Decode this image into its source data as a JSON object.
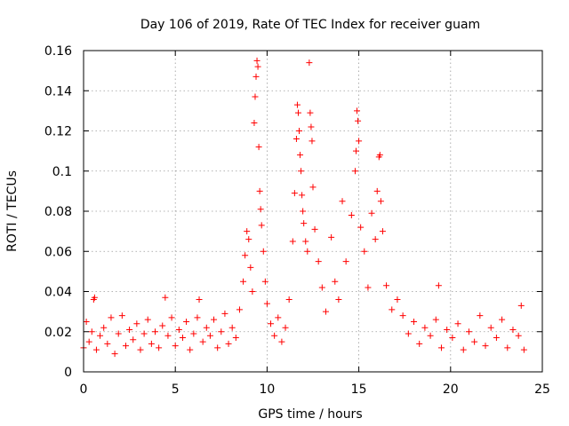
{
  "chart_data": {
    "type": "scatter",
    "title": "Day 106 of 2019, Rate Of TEC Index for receiver guam",
    "xlabel": "GPS time / hours",
    "ylabel": "ROTI / TECUs",
    "xlim": [
      0,
      25
    ],
    "ylim": [
      0,
      0.16
    ],
    "xticks": [
      0,
      5,
      10,
      15,
      20,
      25
    ],
    "xtick_labels": [
      "0",
      "5",
      "10",
      "15",
      "20",
      "25"
    ],
    "yticks": [
      0,
      0.02,
      0.04,
      0.06,
      0.08,
      0.1,
      0.12,
      0.14,
      0.16
    ],
    "ytick_labels": [
      "0",
      "0.02",
      "0.04",
      "0.06",
      "0.08",
      "0.1",
      "0.12",
      "0.14",
      "0.16"
    ],
    "grid": true,
    "marker": "plus",
    "series": [
      {
        "color": "#ff0000",
        "points": [
          [
            0.0,
            0.012
          ],
          [
            0.15,
            0.025
          ],
          [
            0.3,
            0.015
          ],
          [
            0.45,
            0.02
          ],
          [
            0.55,
            0.036
          ],
          [
            0.6,
            0.037
          ],
          [
            0.7,
            0.011
          ],
          [
            0.9,
            0.018
          ],
          [
            1.1,
            0.022
          ],
          [
            1.3,
            0.014
          ],
          [
            1.5,
            0.027
          ],
          [
            1.7,
            0.009
          ],
          [
            1.9,
            0.019
          ],
          [
            2.1,
            0.028
          ],
          [
            2.3,
            0.013
          ],
          [
            2.5,
            0.021
          ],
          [
            2.7,
            0.016
          ],
          [
            2.9,
            0.024
          ],
          [
            3.1,
            0.011
          ],
          [
            3.3,
            0.019
          ],
          [
            3.5,
            0.026
          ],
          [
            3.7,
            0.014
          ],
          [
            3.9,
            0.02
          ],
          [
            4.1,
            0.012
          ],
          [
            4.3,
            0.023
          ],
          [
            4.45,
            0.037
          ],
          [
            4.6,
            0.018
          ],
          [
            4.8,
            0.027
          ],
          [
            5.0,
            0.013
          ],
          [
            5.2,
            0.021
          ],
          [
            5.4,
            0.017
          ],
          [
            5.6,
            0.025
          ],
          [
            5.8,
            0.011
          ],
          [
            6.0,
            0.019
          ],
          [
            6.2,
            0.027
          ],
          [
            6.3,
            0.036
          ],
          [
            6.5,
            0.015
          ],
          [
            6.7,
            0.022
          ],
          [
            6.9,
            0.018
          ],
          [
            7.1,
            0.026
          ],
          [
            7.3,
            0.012
          ],
          [
            7.5,
            0.02
          ],
          [
            7.7,
            0.029
          ],
          [
            7.9,
            0.014
          ],
          [
            8.1,
            0.022
          ],
          [
            8.3,
            0.017
          ],
          [
            8.5,
            0.031
          ],
          [
            8.7,
            0.045
          ],
          [
            8.8,
            0.058
          ],
          [
            8.9,
            0.07
          ],
          [
            9.0,
            0.066
          ],
          [
            9.1,
            0.052
          ],
          [
            9.2,
            0.04
          ],
          [
            9.3,
            0.124
          ],
          [
            9.35,
            0.137
          ],
          [
            9.4,
            0.147
          ],
          [
            9.45,
            0.155
          ],
          [
            9.5,
            0.152
          ],
          [
            9.55,
            0.112
          ],
          [
            9.6,
            0.09
          ],
          [
            9.65,
            0.081
          ],
          [
            9.7,
            0.073
          ],
          [
            9.8,
            0.06
          ],
          [
            9.9,
            0.045
          ],
          [
            10.0,
            0.034
          ],
          [
            10.2,
            0.024
          ],
          [
            10.4,
            0.018
          ],
          [
            10.6,
            0.027
          ],
          [
            10.8,
            0.015
          ],
          [
            11.0,
            0.022
          ],
          [
            11.2,
            0.036
          ],
          [
            11.4,
            0.065
          ],
          [
            11.5,
            0.089
          ],
          [
            11.6,
            0.116
          ],
          [
            11.65,
            0.133
          ],
          [
            11.7,
            0.129
          ],
          [
            11.75,
            0.12
          ],
          [
            11.8,
            0.108
          ],
          [
            11.85,
            0.1
          ],
          [
            11.9,
            0.088
          ],
          [
            11.95,
            0.08
          ],
          [
            12.0,
            0.074
          ],
          [
            12.1,
            0.065
          ],
          [
            12.2,
            0.06
          ],
          [
            12.3,
            0.154
          ],
          [
            12.35,
            0.129
          ],
          [
            12.4,
            0.122
          ],
          [
            12.45,
            0.115
          ],
          [
            12.5,
            0.092
          ],
          [
            12.6,
            0.071
          ],
          [
            12.8,
            0.055
          ],
          [
            13.0,
            0.042
          ],
          [
            13.2,
            0.03
          ],
          [
            13.5,
            0.067
          ],
          [
            13.7,
            0.045
          ],
          [
            13.9,
            0.036
          ],
          [
            14.1,
            0.085
          ],
          [
            14.3,
            0.055
          ],
          [
            14.6,
            0.078
          ],
          [
            14.8,
            0.1
          ],
          [
            14.85,
            0.11
          ],
          [
            14.9,
            0.13
          ],
          [
            14.95,
            0.125
          ],
          [
            15.0,
            0.115
          ],
          [
            15.1,
            0.072
          ],
          [
            15.3,
            0.06
          ],
          [
            15.5,
            0.042
          ],
          [
            15.7,
            0.079
          ],
          [
            15.9,
            0.066
          ],
          [
            16.0,
            0.09
          ],
          [
            16.1,
            0.107
          ],
          [
            16.15,
            0.108
          ],
          [
            16.2,
            0.085
          ],
          [
            16.3,
            0.07
          ],
          [
            16.5,
            0.043
          ],
          [
            16.8,
            0.031
          ],
          [
            17.1,
            0.036
          ],
          [
            17.4,
            0.028
          ],
          [
            17.7,
            0.019
          ],
          [
            18.0,
            0.025
          ],
          [
            18.3,
            0.014
          ],
          [
            18.6,
            0.022
          ],
          [
            18.9,
            0.018
          ],
          [
            19.2,
            0.026
          ],
          [
            19.35,
            0.043
          ],
          [
            19.5,
            0.012
          ],
          [
            19.8,
            0.021
          ],
          [
            20.1,
            0.017
          ],
          [
            20.4,
            0.024
          ],
          [
            20.7,
            0.011
          ],
          [
            21.0,
            0.02
          ],
          [
            21.3,
            0.015
          ],
          [
            21.6,
            0.028
          ],
          [
            21.9,
            0.013
          ],
          [
            22.2,
            0.022
          ],
          [
            22.5,
            0.017
          ],
          [
            22.8,
            0.026
          ],
          [
            23.1,
            0.012
          ],
          [
            23.4,
            0.021
          ],
          [
            23.7,
            0.018
          ],
          [
            23.85,
            0.033
          ],
          [
            24.0,
            0.011
          ]
        ]
      }
    ]
  }
}
